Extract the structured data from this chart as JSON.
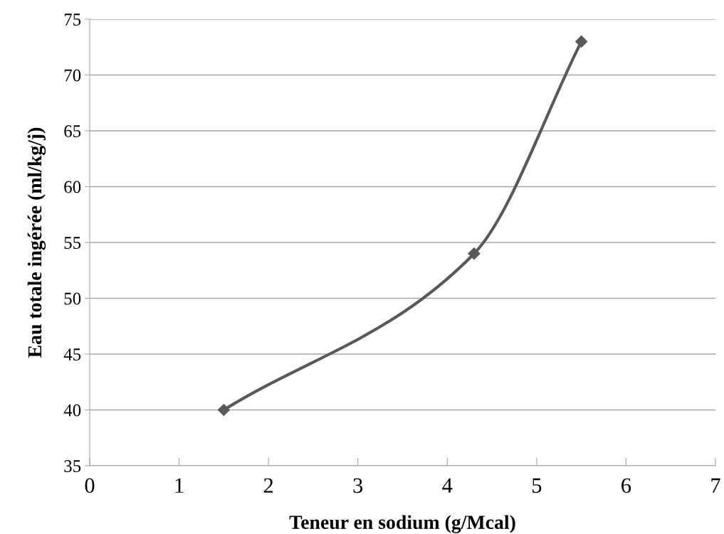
{
  "chart_data": {
    "type": "line",
    "xlabel": "Teneur en sodium (g/Mcal)",
    "ylabel": "Eau totale ingérée (ml/kg/j)",
    "x": [
      1.5,
      4.3,
      5.5
    ],
    "series": [
      {
        "color": "#595959",
        "values": [
          40,
          54,
          73
        ]
      }
    ],
    "xlim": [
      0,
      7
    ],
    "xticks": [
      0,
      1,
      2,
      3,
      4,
      5,
      6,
      7
    ],
    "ylim": [
      35,
      75
    ],
    "yticks": [
      35,
      40,
      45,
      50,
      55,
      60,
      65,
      70,
      75
    ],
    "grid": "y",
    "marker": "diamond",
    "line_style": "solid"
  }
}
